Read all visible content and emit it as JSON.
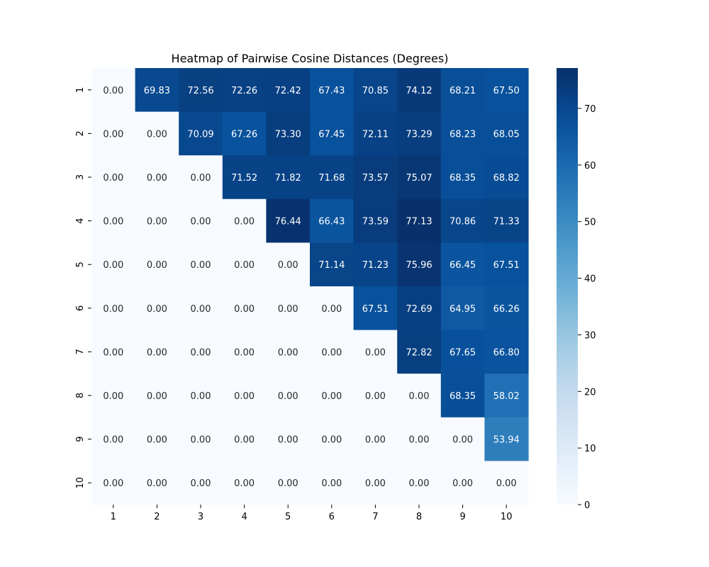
{
  "chart_data": {
    "type": "heatmap",
    "title": "Heatmap of Pairwise Cosine Distances (Degrees)",
    "xlabel": "",
    "ylabel": "",
    "x_ticks": [
      "1",
      "2",
      "3",
      "4",
      "5",
      "6",
      "7",
      "8",
      "9",
      "10"
    ],
    "y_ticks": [
      "1",
      "2",
      "3",
      "4",
      "5",
      "6",
      "7",
      "8",
      "9",
      "10"
    ],
    "values": [
      [
        0.0,
        69.83,
        72.56,
        72.26,
        72.42,
        67.43,
        70.85,
        74.12,
        68.21,
        67.5
      ],
      [
        0.0,
        0.0,
        70.09,
        67.26,
        73.3,
        67.45,
        72.11,
        73.29,
        68.23,
        68.05
      ],
      [
        0.0,
        0.0,
        0.0,
        71.52,
        71.82,
        71.68,
        73.57,
        75.07,
        68.35,
        68.82
      ],
      [
        0.0,
        0.0,
        0.0,
        0.0,
        76.44,
        66.43,
        73.59,
        77.13,
        70.86,
        71.33
      ],
      [
        0.0,
        0.0,
        0.0,
        0.0,
        0.0,
        71.14,
        71.23,
        75.96,
        66.45,
        67.51
      ],
      [
        0.0,
        0.0,
        0.0,
        0.0,
        0.0,
        0.0,
        67.51,
        72.69,
        64.95,
        66.26
      ],
      [
        0.0,
        0.0,
        0.0,
        0.0,
        0.0,
        0.0,
        0.0,
        72.82,
        67.65,
        66.8
      ],
      [
        0.0,
        0.0,
        0.0,
        0.0,
        0.0,
        0.0,
        0.0,
        0.0,
        68.35,
        58.02
      ],
      [
        0.0,
        0.0,
        0.0,
        0.0,
        0.0,
        0.0,
        0.0,
        0.0,
        0.0,
        53.94
      ],
      [
        0.0,
        0.0,
        0.0,
        0.0,
        0.0,
        0.0,
        0.0,
        0.0,
        0.0,
        0.0
      ]
    ],
    "value_range": [
      0,
      77.13
    ],
    "colormap": "Blues",
    "colorbar_ticks": [
      0,
      10,
      20,
      30,
      40,
      50,
      60,
      70
    ],
    "annotated": true,
    "grid": false
  }
}
